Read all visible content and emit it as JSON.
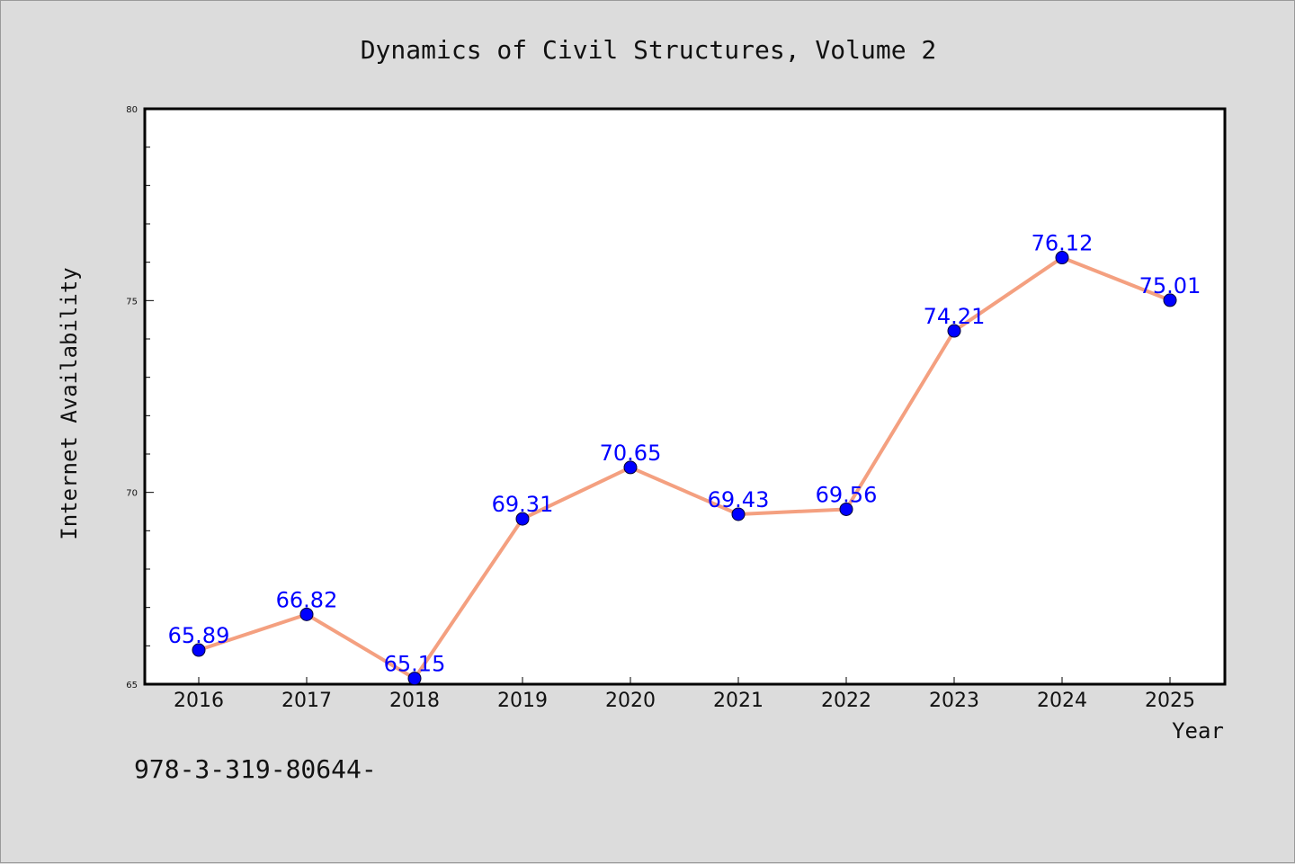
{
  "chart_data": {
    "type": "line",
    "title": "Dynamics of Civil Structures, Volume 2",
    "xlabel": "Year",
    "ylabel": "Internet Availability",
    "categories": [
      "2016",
      "2017",
      "2018",
      "2019",
      "2020",
      "2021",
      "2022",
      "2023",
      "2024",
      "2025"
    ],
    "series": [
      {
        "values": [
          65.89,
          66.82,
          65.15,
          69.31,
          70.65,
          69.43,
          69.56,
          74.21,
          76.12,
          75.01
        ],
        "data_labels": [
          "65.89",
          "66.82",
          "65.15",
          "69.31",
          "70.65",
          "69.43",
          "69.56",
          "74.21",
          "76.12",
          "75.01"
        ],
        "line_color": "#f4a080",
        "marker_color": "#0000ff"
      }
    ],
    "ylim": [
      65,
      80
    ],
    "yticks": [
      65,
      70,
      75,
      80
    ],
    "ytick_labels": [
      "65",
      "70",
      "75",
      "80"
    ],
    "grid": false,
    "legend": "none"
  },
  "footer": {
    "isbn": "978-3-319-80644-"
  },
  "colors": {
    "background": "#dcdcdc",
    "plot_background": "#ffffff",
    "line": "#f4a080",
    "marker": "#0000ff",
    "data_label": "#0000ff"
  }
}
